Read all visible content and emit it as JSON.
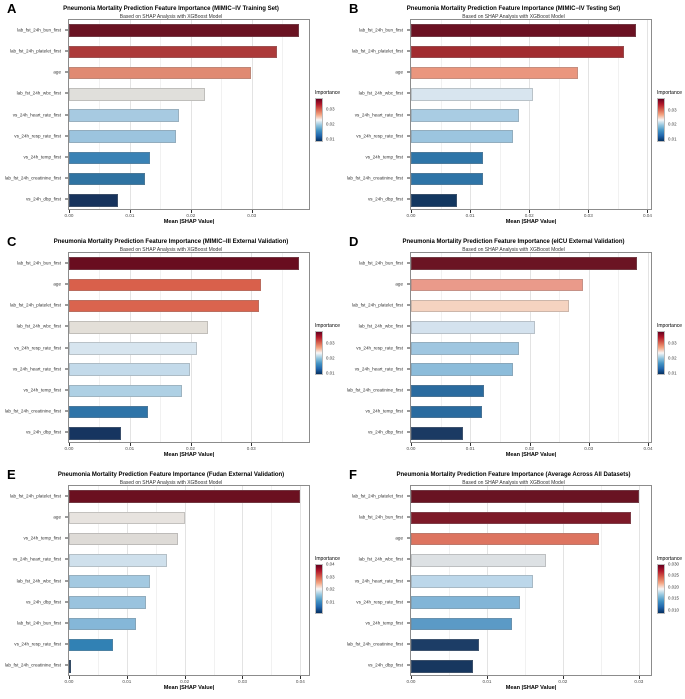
{
  "figure": {
    "background": "#ffffff",
    "panel_border_color": "#8c8c8c",
    "legend_gradient_stops": [
      "#67001f",
      "#b2182b",
      "#d6604d",
      "#f4a582",
      "#f7f7f7",
      "#92c5de",
      "#4393c3",
      "#2166ac",
      "#053061"
    ]
  },
  "chart_data": [
    {
      "panel": "A",
      "type": "bar",
      "orientation": "horizontal",
      "title": "Pneumonia Mortality Prediction Feature Importance (MIMIC−IV Training Set)",
      "subtitle": "Based on SHAP Analysis with XGBoost Model",
      "xlabel": "Mean |SHAP Value|",
      "legend_title": "Importance",
      "legend_ticks": [
        "0.03",
        "0.02",
        "0.01"
      ],
      "legend_tick_values": [
        0.03,
        0.02,
        0.01
      ],
      "xlim": [
        0,
        0.0394
      ],
      "xticks": [
        0.0,
        0.01,
        0.02,
        0.03
      ],
      "xtick_labels": [
        "0.00",
        "0.01",
        "0.02",
        "0.03"
      ],
      "grid": true,
      "categories": [
        "lab_fst_24h_bun_first",
        "lab_fst_24h_platelet_first",
        "age",
        "lab_fst_24h_wbc_first",
        "vs_24h_heart_rate_first",
        "vs_24h_resp_rate_first",
        "vs_24h_temp_first",
        "lab_fst_24h_creatinine_first",
        "vs_24h_dbp_first"
      ],
      "values": [
        0.0377,
        0.0342,
        0.0299,
        0.0223,
        0.018,
        0.0176,
        0.0133,
        0.0125,
        0.0081
      ],
      "colors": [
        "#6a1322",
        "#ac3a3a",
        "#e08a72",
        "#e0dfdb",
        "#a7cae1",
        "#9cc4de",
        "#3a82b5",
        "#2f73a2",
        "#17335d"
      ]
    },
    {
      "panel": "B",
      "type": "bar",
      "orientation": "horizontal",
      "title": "Pneumonia Mortality Prediction Feature Importance (MIMIC−IV Testing Set)",
      "subtitle": "Based on SHAP Analysis with XGBoost Model",
      "xlabel": "Mean |SHAP Value|",
      "legend_title": "Importance",
      "legend_ticks": [
        "0.03",
        "0.02",
        "0.01"
      ],
      "legend_tick_values": [
        0.03,
        0.02,
        0.01
      ],
      "xlim": [
        0,
        0.0406
      ],
      "xticks": [
        0.0,
        0.01,
        0.02,
        0.03,
        0.04
      ],
      "xtick_labels": [
        "0.00",
        "0.01",
        "0.02",
        "0.03",
        "0.04"
      ],
      "grid": true,
      "categories": [
        "lab_fst_24h_bun_first",
        "lab_fst_24h_platelet_first",
        "age",
        "lab_fst_24h_wbc_first",
        "vs_24h_heart_rate_first",
        "vs_24h_resp_rate_first",
        "vs_24h_temp_first",
        "lab_fst_24h_creatinine_first",
        "vs_24h_dbp_first"
      ],
      "values": [
        0.0381,
        0.0361,
        0.0283,
        0.0206,
        0.0183,
        0.0172,
        0.0122,
        0.0121,
        0.0077
      ],
      "colors": [
        "#6b1122",
        "#a12c30",
        "#ea967e",
        "#d8e5ef",
        "#a9cce3",
        "#9cc5df",
        "#2e75a8",
        "#2e74a7",
        "#133760"
      ]
    },
    {
      "panel": "C",
      "type": "bar",
      "orientation": "horizontal",
      "title": "Pneumonia Mortality Prediction Feature Importance (MIMIC−III External Validation)",
      "subtitle": "Based on SHAP Analysis with XGBoost Model",
      "xlabel": "Mean |SHAP Value|",
      "legend_title": "Importance",
      "legend_ticks": [
        "0.03",
        "0.02",
        "0.01"
      ],
      "legend_tick_values": [
        0.03,
        0.02,
        0.01
      ],
      "xlim": [
        0,
        0.0395
      ],
      "xticks": [
        0.0,
        0.01,
        0.02,
        0.03
      ],
      "xtick_labels": [
        "0.00",
        "0.01",
        "0.02",
        "0.03"
      ],
      "grid": true,
      "categories": [
        "lab_fst_24h_bun_first",
        "age",
        "lab_fst_24h_platelet_first",
        "lab_fst_24h_wbc_first",
        "vs_24h_resp_rate_first",
        "vs_24h_heart_rate_first",
        "vs_24h_temp_first",
        "lab_fst_24h_creatinine_first",
        "vs_24h_dbp_first"
      ],
      "values": [
        0.0379,
        0.0316,
        0.0312,
        0.0228,
        0.021,
        0.0199,
        0.0186,
        0.013,
        0.0086
      ],
      "colors": [
        "#690d1f",
        "#d9604b",
        "#da644e",
        "#e3dfd8",
        "#d7e5ef",
        "#c3daea",
        "#aed0e4",
        "#2e74a8",
        "#163560"
      ]
    },
    {
      "panel": "D",
      "type": "bar",
      "orientation": "horizontal",
      "title": "Pneumonia Mortality Prediction Feature Importance (eICU External Validation)",
      "subtitle": "Based on SHAP Analysis with XGBoost Model",
      "xlabel": "Mean |SHAP Value|",
      "legend_title": "Importance",
      "legend_ticks": [
        "0.03",
        "0.02",
        "0.01"
      ],
      "legend_tick_values": [
        0.03,
        0.02,
        0.01
      ],
      "xlim": [
        0,
        0.0405
      ],
      "xticks": [
        0.0,
        0.01,
        0.02,
        0.03,
        0.04
      ],
      "xtick_labels": [
        "0.00",
        "0.01",
        "0.02",
        "0.03",
        "0.04"
      ],
      "grid": true,
      "categories": [
        "lab_fst_24h_bun_first",
        "age",
        "lab_fst_24h_platelet_first",
        "lab_fst_24h_wbc_first",
        "vs_24h_resp_rate_first",
        "vs_24h_heart_rate_first",
        "lab_fst_24h_creatinine_first",
        "vs_24h_temp_first",
        "vs_24h_dbp_first"
      ],
      "values": [
        0.0381,
        0.029,
        0.0266,
        0.0209,
        0.0182,
        0.0172,
        0.0124,
        0.0119,
        0.0087
      ],
      "colors": [
        "#6b1423",
        "#ea9a8a",
        "#f5d3c0",
        "#d4e2ee",
        "#9fc6e0",
        "#8cbcda",
        "#2a6b9f",
        "#2a6b9f",
        "#1b3a63"
      ]
    },
    {
      "panel": "E",
      "type": "bar",
      "orientation": "horizontal",
      "title": "Pneumonia Mortality Prediction Feature Importance (Fudan External Validation)",
      "subtitle": "Based on SHAP Analysis with XGBoost Model",
      "xlabel": "Mean |SHAP Value|",
      "legend_title": "Importance",
      "legend_ticks": [
        "0.04",
        "0.03",
        "0.02",
        "0.01"
      ],
      "legend_tick_values": [
        0.04,
        0.03,
        0.02,
        0.01
      ],
      "xlim": [
        0,
        0.0415
      ],
      "xticks": [
        0.0,
        0.01,
        0.02,
        0.03,
        0.04
      ],
      "xtick_labels": [
        "0.00",
        "0.01",
        "0.02",
        "0.03",
        "0.04"
      ],
      "grid": true,
      "categories": [
        "lab_fst_24h_platelet_first",
        "age",
        "vs_24h_temp_first",
        "vs_24h_heart_rate_first",
        "lab_fst_24h_wbc_first",
        "vs_24h_dbp_first",
        "lab_fst_24h_bun_first",
        "vs_24h_resp_rate_first",
        "lab_fst_24h_creatinine_first"
      ],
      "values": [
        0.0399,
        0.02,
        0.0188,
        0.017,
        0.014,
        0.0133,
        0.0115,
        0.0076,
        0.0003
      ],
      "colors": [
        "#6b1020",
        "#e7e3df",
        "#dedbd7",
        "#cfe0ec",
        "#a3c9e1",
        "#9ac3de",
        "#85b7d8",
        "#3181b4",
        "#0d3056"
      ]
    },
    {
      "panel": "F",
      "type": "bar",
      "orientation": "horizontal",
      "title": "Pneumonia Mortality Prediction Feature Importance (Average Across All Datasets)",
      "subtitle": "Based on SHAP Analysis with XGBoost Model",
      "xlabel": "Mean |SHAP Value|",
      "legend_title": "Importance",
      "legend_ticks": [
        "0.030",
        "0.025",
        "0.020",
        "0.015",
        "0.010"
      ],
      "legend_tick_values": [
        0.03,
        0.025,
        0.02,
        0.015,
        0.01
      ],
      "xlim": [
        0,
        0.0316
      ],
      "xticks": [
        0.0,
        0.01,
        0.02,
        0.03
      ],
      "xtick_labels": [
        "0.00",
        "0.01",
        "0.02",
        "0.03"
      ],
      "grid": true,
      "categories": [
        "lab_fst_24h_platelet_first",
        "lab_fst_24h_bun_first",
        "age",
        "lab_fst_24h_wbc_first",
        "vs_24h_heart_rate_first",
        "vs_24h_resp_rate_first",
        "vs_24h_temp_first",
        "lab_fst_24h_creatinine_first",
        "vs_24h_dbp_first"
      ],
      "values": [
        0.03,
        0.029,
        0.0247,
        0.0178,
        0.0161,
        0.0144,
        0.0133,
        0.009,
        0.0082
      ],
      "colors": [
        "#691322",
        "#7d1a28",
        "#dd7460",
        "#dde1e4",
        "#bcd7ea",
        "#82b5d7",
        "#5b9ac6",
        "#1c3d66",
        "#17375f"
      ]
    }
  ]
}
